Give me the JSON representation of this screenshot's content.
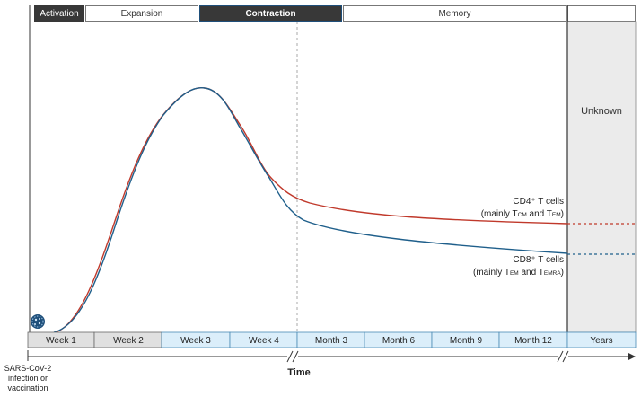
{
  "phases": [
    "Activation",
    "Expansion",
    "Contraction",
    "Memory"
  ],
  "unknown_label": "Unknown",
  "timeline": [
    "Week 1",
    "Week 2",
    "Week 3",
    "Week 4",
    "Month 3",
    "Month 6",
    "Month 9",
    "Month 12",
    "Years"
  ],
  "axis_label": "Time",
  "start_label": [
    "SARS-CoV-2",
    "infection or",
    "vaccination"
  ],
  "cd4": {
    "title": "CD4⁺ T cells",
    "paren_open": "(mainly T",
    "sub1": "CM",
    "and": " and T",
    "sub2": "EM",
    "paren_close": ")"
  },
  "cd8": {
    "title": "CD8⁺ T cells",
    "paren_open": "(mainly T",
    "sub1": "EM",
    "and": " and T",
    "sub2": "EMRA",
    "paren_close": ")"
  },
  "colors": {
    "cd4": "#c0392b",
    "cd8": "#1f5f8b",
    "light_blue": "#dbeefa",
    "grey": "#e0e0e0",
    "unknown_bg": "#ebebeb"
  },
  "icon": "virus-icon"
}
